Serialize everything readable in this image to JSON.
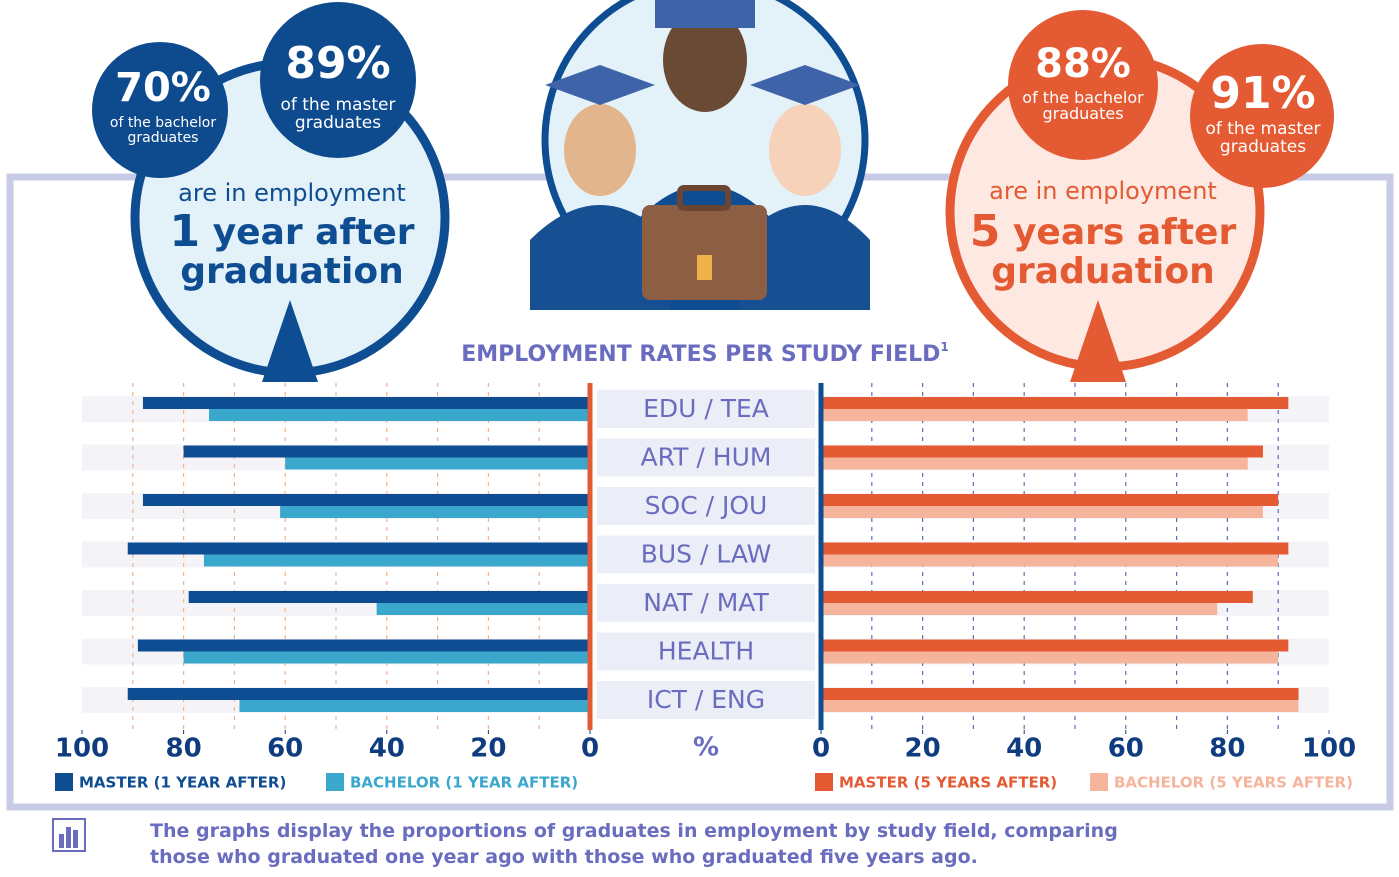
{
  "infographic": {
    "left": {
      "pct_a": "70%",
      "text_a": "of the bachelor graduates",
      "pct_b": "89%",
      "text_b": "of the master graduates",
      "line1": "are in employment",
      "big_num": "1",
      "big_text": "year after",
      "big_line2": "graduation"
    },
    "right": {
      "pct_a": "88%",
      "text_a": "of the bachelor graduates",
      "pct_b": "91%",
      "text_b": "of the master graduates",
      "line1": "are in employment",
      "big_num": "5",
      "big_text": "years after",
      "big_line2": "graduation"
    },
    "footnote": "The graphs display the proportions of graduates in employment by study field, comparing those who graduated one year ago with those who graduated five years ago."
  },
  "chart_data": [
    {
      "type": "bar",
      "title": "EMPLOYMENT RATES PER STUDY FIELD",
      "title_note": "1",
      "x_label": "%",
      "categories": [
        "EDU / TEA",
        "ART / HUM",
        "SOC / JOU",
        "BUS / LAW",
        "NAT / MAT",
        "HEALTH",
        "ICT / ENG"
      ],
      "series": [
        {
          "name": "MASTER (1 YEAR AFTER)",
          "color": "#0f4d92",
          "values": [
            88,
            80,
            88,
            91,
            79,
            89,
            91
          ]
        },
        {
          "name": "BACHELOR (1 YEAR AFTER)",
          "color": "#3aa7cc",
          "values": [
            75,
            60,
            61,
            76,
            42,
            80,
            69
          ]
        }
      ],
      "xlim": [
        0,
        100
      ],
      "xticks": [
        0,
        20,
        40,
        60,
        80,
        100
      ],
      "xgrid": [
        10,
        20,
        30,
        40,
        50,
        60,
        70,
        80,
        90
      ],
      "reversed": true
    },
    {
      "type": "bar",
      "series": [
        {
          "name": "MASTER (5 YEARS AFTER)",
          "color": "#e45a33",
          "values": [
            92,
            87,
            90,
            92,
            85,
            92,
            94
          ]
        },
        {
          "name": "BACHELOR (5 YEARS AFTER)",
          "color": "#f6b49c",
          "values": [
            84,
            84,
            87,
            90,
            78,
            90,
            94
          ]
        }
      ],
      "xlim": [
        0,
        100
      ],
      "xticks": [
        0,
        20,
        40,
        60,
        80,
        100
      ],
      "xgrid": [
        10,
        20,
        30,
        40,
        50,
        60,
        70,
        80,
        90
      ],
      "reversed": false
    }
  ]
}
